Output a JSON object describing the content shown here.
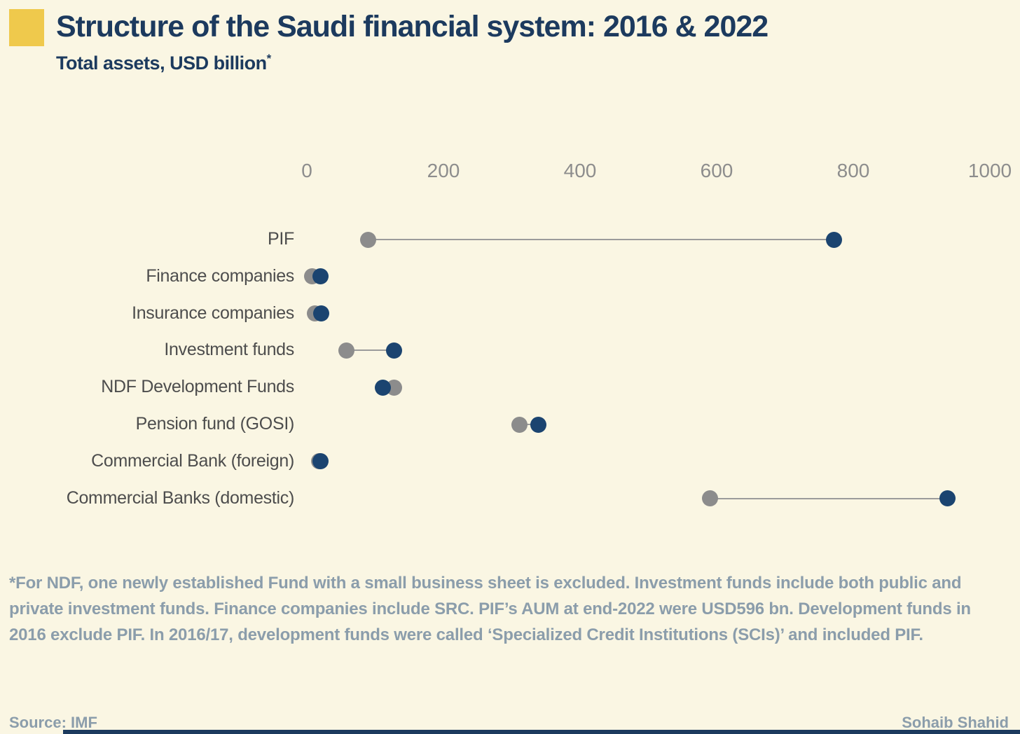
{
  "header": {
    "title": "Structure of the Saudi financial system: 2016 & 2022",
    "subtitle": "Total assets, USD billion",
    "subtitle_superscript": "*"
  },
  "chart_data": {
    "type": "scatter",
    "variant": "dumbbell",
    "title": "Structure of the Saudi financial system: 2016 & 2022",
    "subtitle": "Total assets, USD billion*",
    "unit": "USD billion",
    "xlabel": "",
    "ylabel": "",
    "xlim": [
      0,
      1000
    ],
    "x_ticks": [
      "0",
      "200",
      "400",
      "600",
      "800",
      "1000"
    ],
    "grid": false,
    "legend_position": "none",
    "categories": [
      "PIF",
      "Finance companies",
      "Insurance companies",
      "Investment funds",
      "NDF Development Funds",
      "Pension fund (GOSI)",
      "Commercial Bank (foreign)",
      "Commercial Banks (domestic)"
    ],
    "series": [
      {
        "name": "2016",
        "color": "#8C8C8C",
        "values": [
          90,
          8,
          12,
          58,
          128,
          311,
          18,
          590
        ]
      },
      {
        "name": "2022",
        "color": "#1B4470",
        "values": [
          772,
          20,
          21,
          128,
          111,
          339,
          20,
          938
        ]
      }
    ]
  },
  "footnote": {
    "text": "*For NDF, one newly established Fund with a small business sheet is excluded. Investment funds include both public and private investment funds. Finance companies include SRC. PIF’s AUM at end-2022 were USD596 bn. Development funds in 2016 exclude PIF. In 2016/17, development funds were called ‘Specialized Credit Institutions (SCIs)’ and included PIF."
  },
  "footer": {
    "source": "Source: IMF",
    "author": "Sohaib Shahid"
  },
  "colors": {
    "background": "#FAF6E3",
    "title": "#1C3A5E",
    "accent": "#EFC94C",
    "dot_2016": "#8C8C8C",
    "dot_2022": "#1B4470",
    "connector": "#9B9B9B",
    "axis_label": "#8D8D8D",
    "category_label": "#4D4D4D",
    "footnote": "#8B9DAB",
    "bottom_bar": "#1C3A5E"
  }
}
